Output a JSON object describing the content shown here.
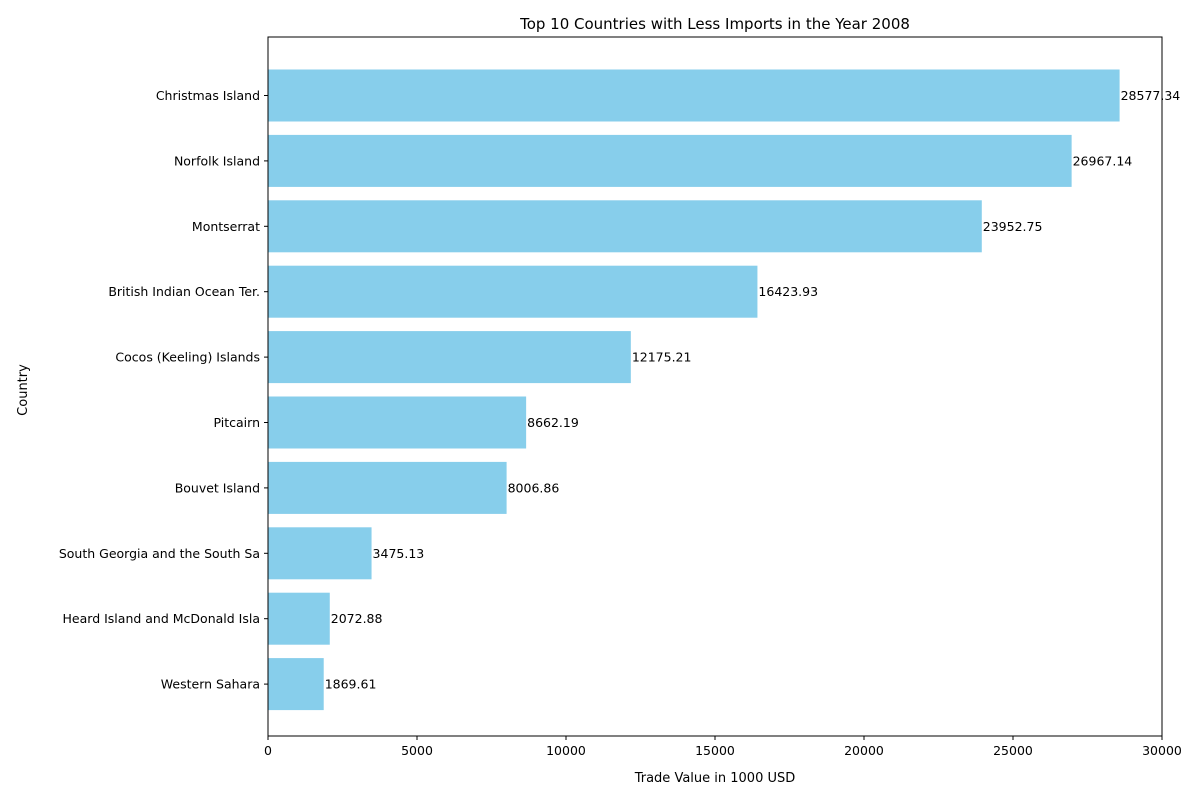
{
  "chart_data": {
    "type": "bar",
    "orientation": "horizontal",
    "title": "Top 10 Countries with Less Imports in the Year 2008",
    "xlabel": "Trade Value in 1000 USD",
    "ylabel": "Country",
    "xlim": [
      0,
      30000
    ],
    "xticks": [
      0,
      5000,
      10000,
      15000,
      20000,
      25000,
      30000
    ],
    "grid": false,
    "bar_color": "#87ceeb",
    "categories": [
      "Christmas Island",
      "Norfolk Island",
      "Montserrat",
      "British Indian Ocean Ter.",
      "Cocos (Keeling) Islands",
      "Pitcairn",
      "Bouvet Island",
      "South Georgia and the South Sa",
      "Heard Island and McDonald Isla",
      "Western Sahara"
    ],
    "values": [
      28577.34,
      26967.14,
      23952.75,
      16423.93,
      12175.21,
      8662.19,
      8006.86,
      3475.13,
      2072.88,
      1869.61
    ],
    "value_labels": [
      "28577.34",
      "26967.14",
      "23952.75",
      "16423.93",
      "12175.21",
      "8662.19",
      "8006.86",
      "3475.13",
      "2072.88",
      "1869.61"
    ]
  }
}
